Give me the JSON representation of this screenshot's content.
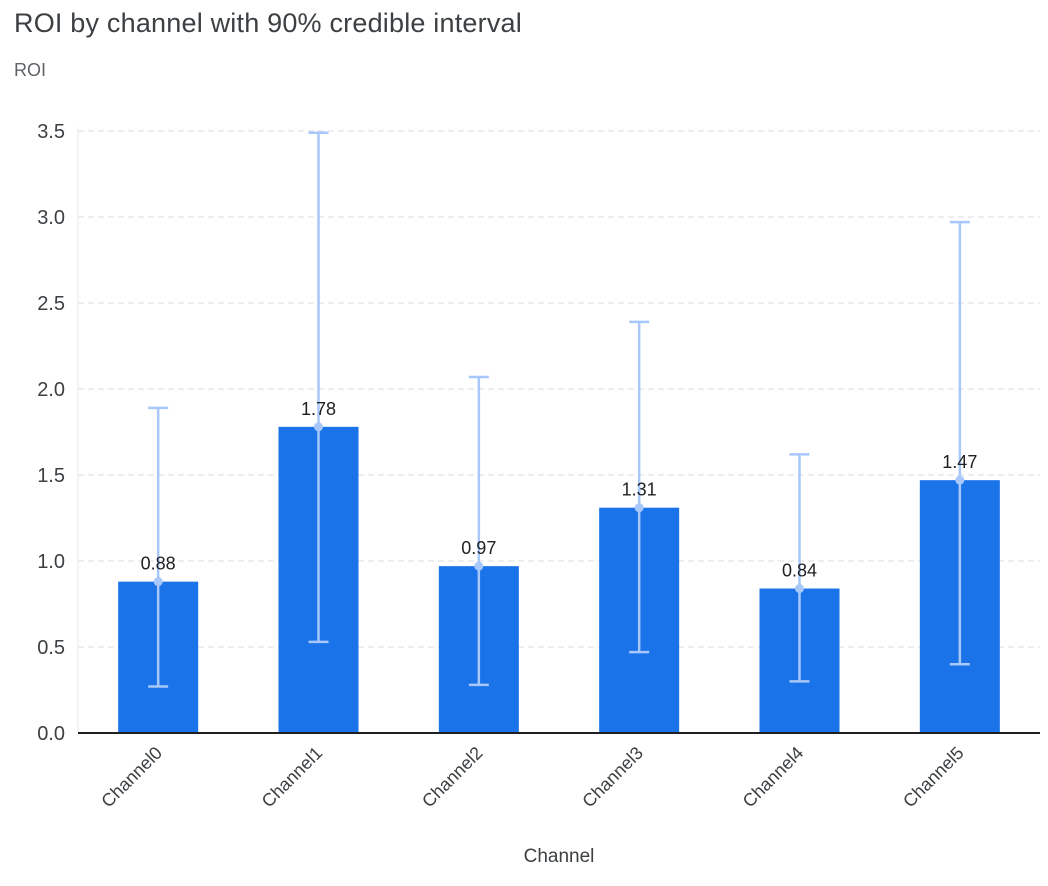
{
  "page": {
    "title": "ROI by channel with 90% credible interval",
    "y_axis_label": "ROI",
    "x_axis_label": "Channel"
  },
  "chart_data": {
    "type": "bar",
    "title": "ROI by channel with 90% credible interval",
    "xlabel": "Channel",
    "ylabel": "ROI",
    "categories": [
      "Channel0",
      "Channel1",
      "Channel2",
      "Channel3",
      "Channel4",
      "Channel5"
    ],
    "values": [
      0.88,
      1.78,
      0.97,
      1.31,
      0.84,
      1.47
    ],
    "value_labels": [
      "0.88",
      "1.78",
      "0.97",
      "1.31",
      "0.84",
      "1.47"
    ],
    "error_low": [
      0.27,
      0.53,
      0.28,
      0.47,
      0.3,
      0.4
    ],
    "error_high": [
      1.89,
      3.49,
      2.07,
      2.39,
      1.62,
      2.97
    ],
    "error_interval": "90% credible interval",
    "ylim": [
      0,
      3.5
    ],
    "ytick_step": 0.5,
    "yticks": [
      "0.0",
      "0.5",
      "1.0",
      "1.5",
      "2.0",
      "2.5",
      "3.0",
      "3.5"
    ],
    "grid": "dashed-horizontal",
    "legend": "none",
    "colors": {
      "bar": "#1a73e8",
      "error_bar": "#a8c7fa",
      "title": "#3c4043",
      "axis_label": "#5f6368",
      "tick_label": "#3c4043",
      "value_label": "#202124",
      "gridline": "#dadce0",
      "axis_line": "#1f1f1f",
      "left_axis_line": "#e8eaed",
      "background": "#ffffff"
    }
  }
}
